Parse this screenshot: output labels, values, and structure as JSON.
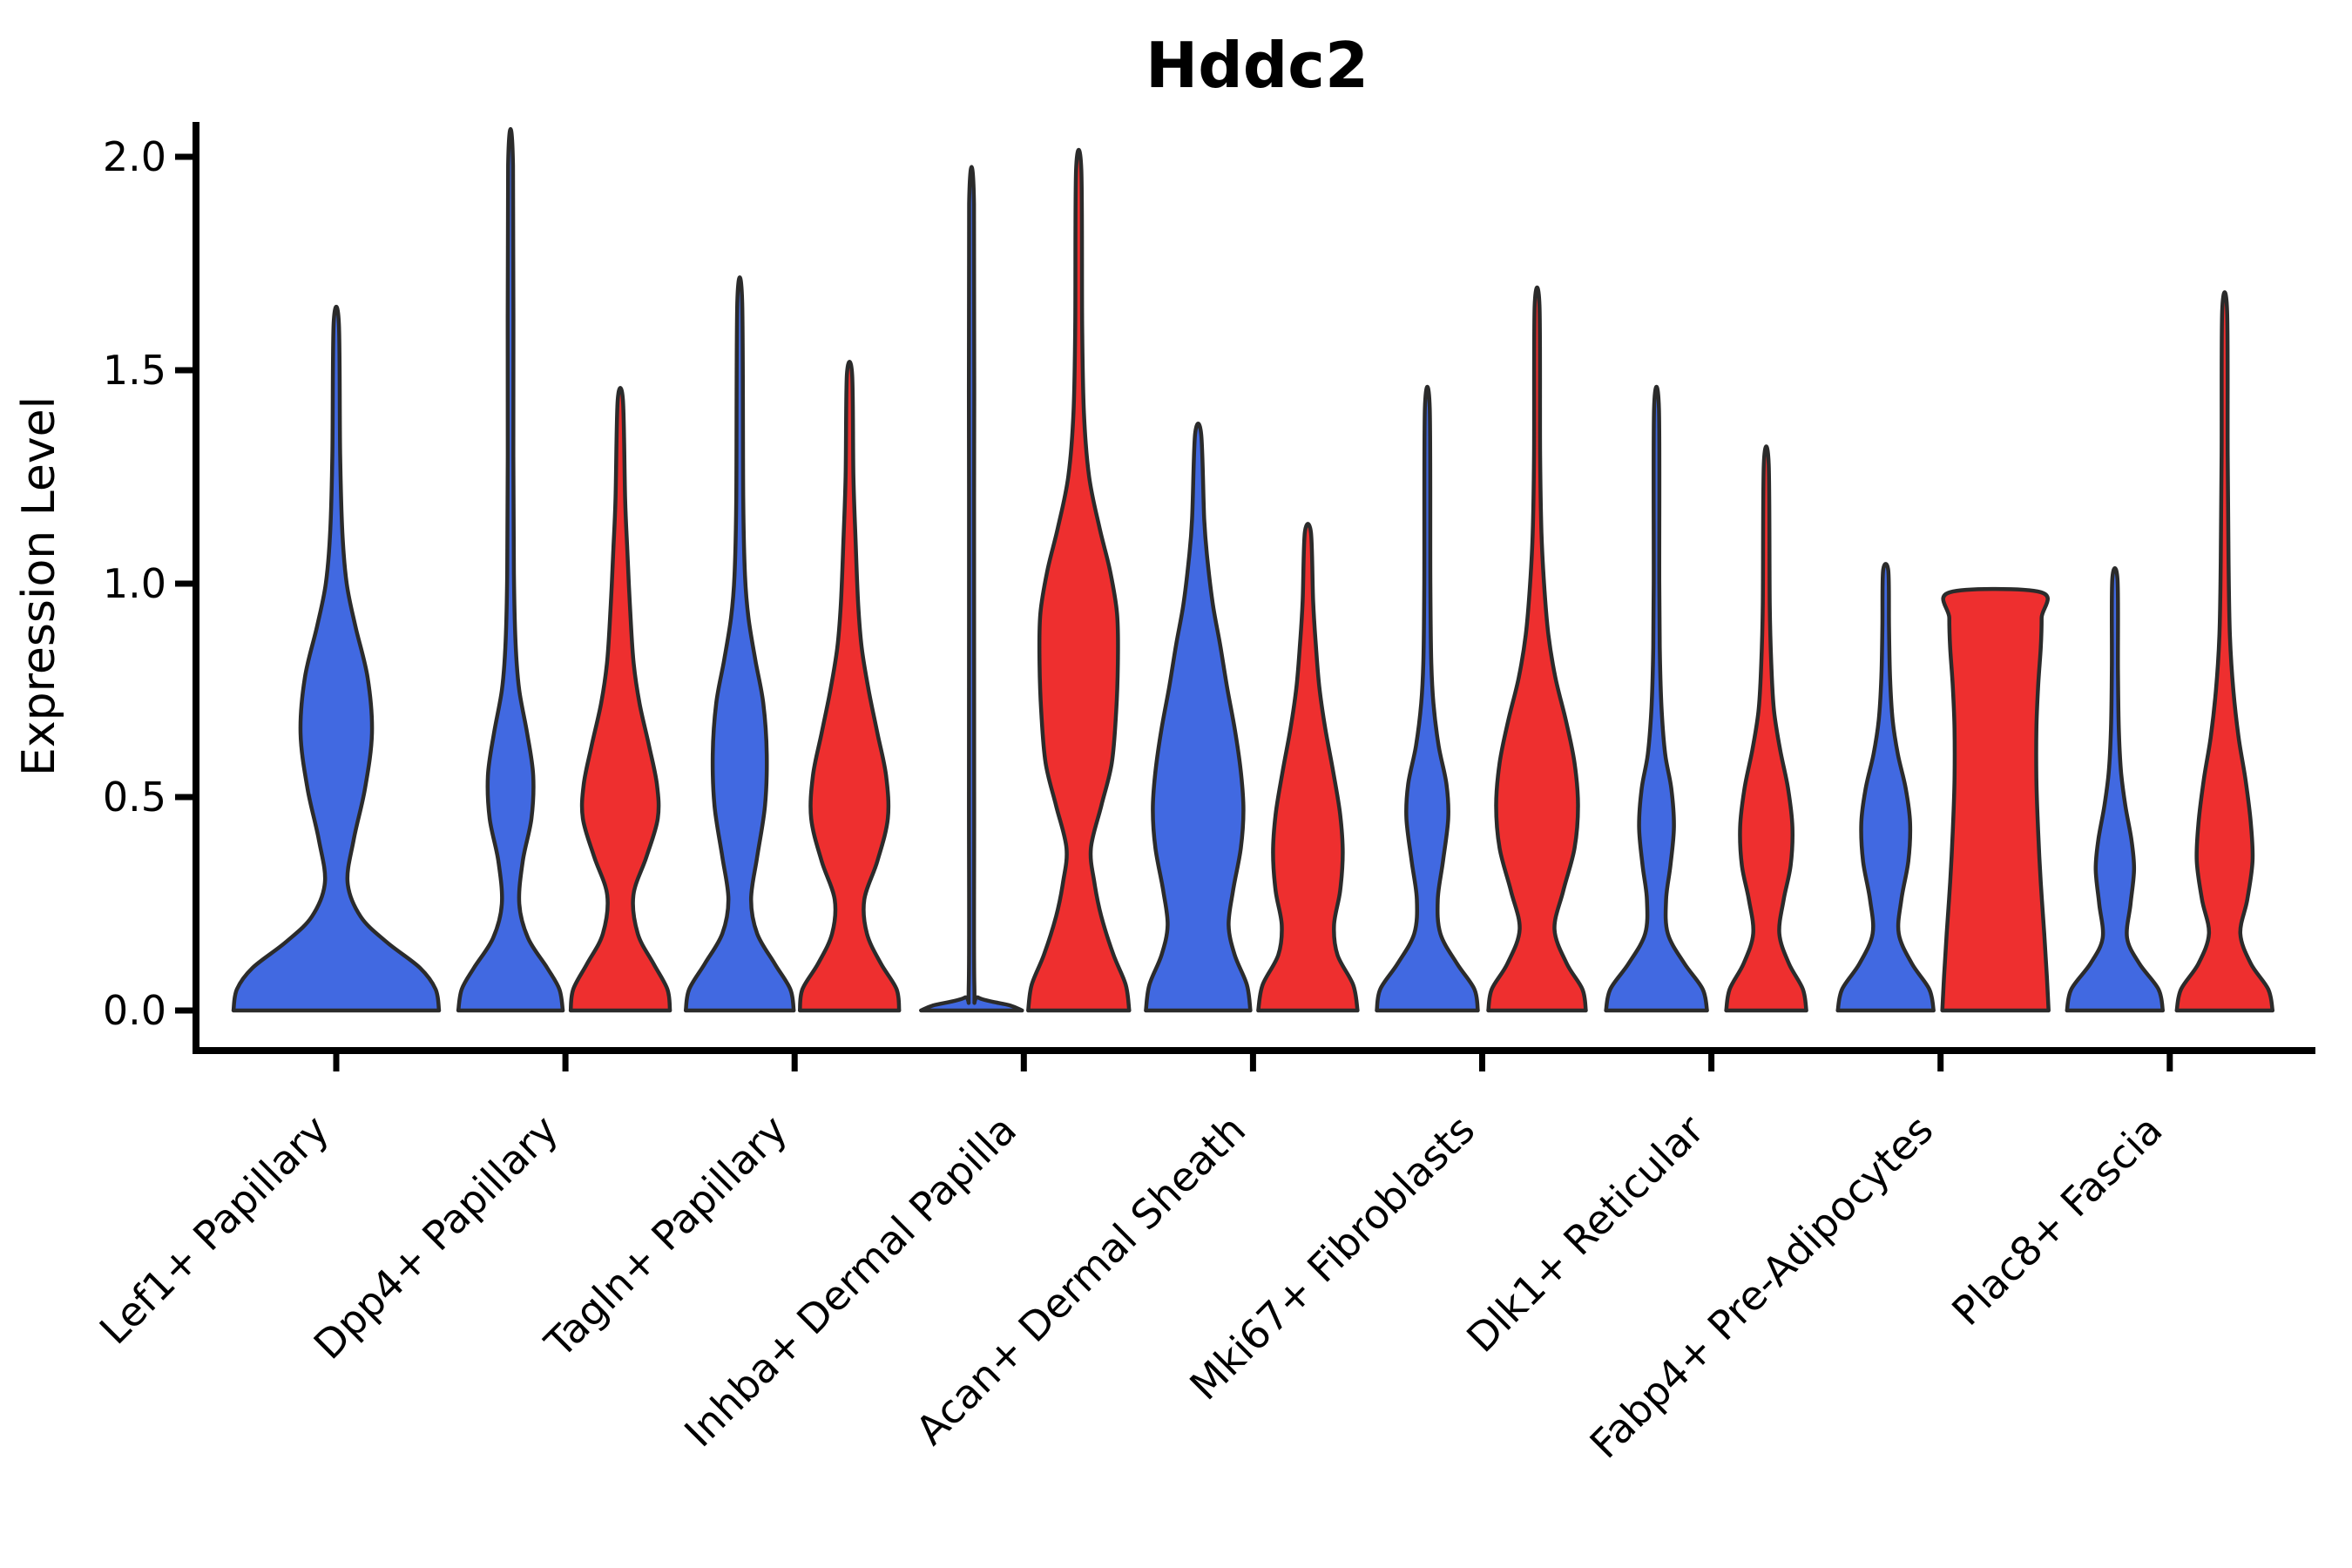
{
  "figure": {
    "title": "Hddc2",
    "ylabel": "Expression Level"
  },
  "colors": {
    "blue": "#4169E1",
    "red": "#EE2F2F",
    "outline": "#2B2B2B",
    "axis": "#000000",
    "text": "#000000",
    "background": "#FFFFFF"
  },
  "chart_data": {
    "type": "violin",
    "title": "Hddc2",
    "xlabel": "",
    "ylabel": "Expression Level",
    "ylim": [
      0,
      2.0
    ],
    "grid": false,
    "legend": "none",
    "yticks": [
      {
        "label": "0.0",
        "value": 0.0
      },
      {
        "label": "0.5",
        "value": 0.5
      },
      {
        "label": "1.0",
        "value": 1.0
      },
      {
        "label": "1.5",
        "value": 1.5
      },
      {
        "label": "2.0",
        "value": 2.0
      }
    ],
    "categories": [
      "Lef1+ Papillary",
      "Dpp4+ Papillary",
      "Tagln+ Papillary",
      "Inhba+ Dermal Papilla",
      "Acan+ Dermal Sheath",
      "Mki67+ Fibroblasts",
      "Dlk1+ Reticular",
      "Fabp4+ Pre-Adipocytes",
      "Plac8+ Fascia"
    ],
    "series": [
      {
        "name": "blue",
        "color": "#4169E1"
      },
      {
        "name": "red",
        "color": "#EE2F2F"
      }
    ],
    "violins": [
      {
        "category_index": 0,
        "category": "Lef1+ Papillary",
        "series": "blue",
        "offset": 0,
        "max_expression": 1.61,
        "profile": [
          [
            0,
            118
          ],
          [
            0.05,
            114
          ],
          [
            0.1,
            96
          ],
          [
            0.16,
            58
          ],
          [
            0.22,
            28
          ],
          [
            0.3,
            13
          ],
          [
            0.4,
            20
          ],
          [
            0.52,
            33
          ],
          [
            0.65,
            41
          ],
          [
            0.78,
            36
          ],
          [
            0.9,
            22
          ],
          [
            1.0,
            12
          ],
          [
            1.12,
            7
          ],
          [
            1.3,
            4.5
          ],
          [
            1.61,
            3
          ]
        ]
      },
      {
        "category_index": 1,
        "category": "Dpp4+ Papillary",
        "series": "blue",
        "offset": -63,
        "max_expression": 1.98,
        "profile": [
          [
            0,
            60
          ],
          [
            0.05,
            56
          ],
          [
            0.1,
            42
          ],
          [
            0.17,
            20
          ],
          [
            0.25,
            10
          ],
          [
            0.35,
            14
          ],
          [
            0.45,
            24
          ],
          [
            0.55,
            26
          ],
          [
            0.65,
            19
          ],
          [
            0.75,
            10
          ],
          [
            0.85,
            6
          ],
          [
            1.0,
            4
          ],
          [
            1.3,
            3.2
          ],
          [
            1.98,
            2.8
          ]
        ]
      },
      {
        "category_index": 1,
        "category": "Dpp4+ Papillary",
        "series": "red",
        "offset": 63,
        "max_expression": 1.43,
        "profile": [
          [
            0,
            57
          ],
          [
            0.05,
            54
          ],
          [
            0.11,
            38
          ],
          [
            0.18,
            20
          ],
          [
            0.27,
            15
          ],
          [
            0.36,
            30
          ],
          [
            0.45,
            43
          ],
          [
            0.53,
            42
          ],
          [
            0.62,
            33
          ],
          [
            0.72,
            22
          ],
          [
            0.82,
            15
          ],
          [
            0.95,
            11
          ],
          [
            1.08,
            8
          ],
          [
            1.2,
            5.5
          ],
          [
            1.43,
            3
          ]
        ]
      },
      {
        "category_index": 2,
        "category": "Tagln+ Papillary",
        "series": "blue",
        "offset": -63,
        "max_expression": 1.66,
        "profile": [
          [
            0,
            62
          ],
          [
            0.05,
            58
          ],
          [
            0.11,
            40
          ],
          [
            0.18,
            20
          ],
          [
            0.26,
            13
          ],
          [
            0.36,
            20
          ],
          [
            0.48,
            29
          ],
          [
            0.6,
            31
          ],
          [
            0.72,
            27
          ],
          [
            0.82,
            18
          ],
          [
            0.92,
            10
          ],
          [
            1.02,
            6
          ],
          [
            1.2,
            4
          ],
          [
            1.66,
            2.8
          ]
        ]
      },
      {
        "category_index": 2,
        "category": "Tagln+ Papillary",
        "series": "red",
        "offset": 63,
        "max_expression": 1.49,
        "profile": [
          [
            0,
            57
          ],
          [
            0.05,
            54
          ],
          [
            0.11,
            36
          ],
          [
            0.18,
            20
          ],
          [
            0.26,
            17
          ],
          [
            0.35,
            32
          ],
          [
            0.45,
            44
          ],
          [
            0.55,
            42
          ],
          [
            0.65,
            32
          ],
          [
            0.75,
            22
          ],
          [
            0.85,
            14
          ],
          [
            0.95,
            10
          ],
          [
            1.1,
            7
          ],
          [
            1.25,
            4.5
          ],
          [
            1.49,
            3
          ]
        ]
      },
      {
        "category_index": 3,
        "category": "Inhba+ Dermal Papilla",
        "series": "blue",
        "offset": -60,
        "max_expression": 1.89,
        "profile": [
          [
            0,
            58
          ],
          [
            0.012,
            44
          ],
          [
            0.03,
            8
          ],
          [
            0.06,
            3.2
          ],
          [
            0.5,
            3
          ],
          [
            1.2,
            2.9
          ],
          [
            1.89,
            2.8
          ]
        ]
      },
      {
        "category_index": 3,
        "category": "Inhba+ Dermal Papilla",
        "series": "red",
        "offset": 63,
        "max_expression": 1.97,
        "profile": [
          [
            0,
            58
          ],
          [
            0.06,
            54
          ],
          [
            0.13,
            40
          ],
          [
            0.22,
            26
          ],
          [
            0.3,
            18
          ],
          [
            0.38,
            14
          ],
          [
            0.48,
            26
          ],
          [
            0.58,
            38
          ],
          [
            0.7,
            43
          ],
          [
            0.82,
            45
          ],
          [
            0.93,
            44
          ],
          [
            1.03,
            36
          ],
          [
            1.13,
            24
          ],
          [
            1.25,
            12
          ],
          [
            1.4,
            6
          ],
          [
            1.6,
            4
          ],
          [
            1.97,
            3
          ]
        ]
      },
      {
        "category_index": 4,
        "category": "Acan+ Dermal Sheath",
        "series": "blue",
        "offset": -63,
        "max_expression": 1.35,
        "profile": [
          [
            0,
            60
          ],
          [
            0.06,
            56
          ],
          [
            0.13,
            42
          ],
          [
            0.2,
            35
          ],
          [
            0.28,
            40
          ],
          [
            0.38,
            49
          ],
          [
            0.47,
            52
          ],
          [
            0.56,
            49
          ],
          [
            0.66,
            42
          ],
          [
            0.76,
            33
          ],
          [
            0.86,
            25
          ],
          [
            0.95,
            17
          ],
          [
            1.05,
            11
          ],
          [
            1.15,
            7
          ],
          [
            1.35,
            3.5
          ]
        ]
      },
      {
        "category_index": 4,
        "category": "Acan+ Dermal Sheath",
        "series": "red",
        "offset": 63,
        "max_expression": 1.12,
        "profile": [
          [
            0,
            57
          ],
          [
            0.06,
            52
          ],
          [
            0.13,
            34
          ],
          [
            0.2,
            30
          ],
          [
            0.28,
            37
          ],
          [
            0.37,
            40
          ],
          [
            0.46,
            37
          ],
          [
            0.56,
            29
          ],
          [
            0.66,
            20
          ],
          [
            0.76,
            13
          ],
          [
            0.86,
            9
          ],
          [
            0.96,
            6
          ],
          [
            1.12,
            3.5
          ]
        ]
      },
      {
        "category_index": 5,
        "category": "Mki67+ Fibroblasts",
        "series": "blue",
        "offset": -63,
        "max_expression": 1.41,
        "profile": [
          [
            0,
            58
          ],
          [
            0.05,
            54
          ],
          [
            0.11,
            34
          ],
          [
            0.18,
            15
          ],
          [
            0.26,
            12
          ],
          [
            0.35,
            18
          ],
          [
            0.45,
            24
          ],
          [
            0.53,
            22
          ],
          [
            0.62,
            13
          ],
          [
            0.72,
            7
          ],
          [
            0.82,
            4.5
          ],
          [
            1.0,
            3.5
          ],
          [
            1.41,
            2.8
          ]
        ]
      },
      {
        "category_index": 5,
        "category": "Mki67+ Fibroblasts",
        "series": "red",
        "offset": 63,
        "max_expression": 1.65,
        "profile": [
          [
            0,
            56
          ],
          [
            0.05,
            52
          ],
          [
            0.11,
            34
          ],
          [
            0.19,
            20
          ],
          [
            0.28,
            30
          ],
          [
            0.38,
            43
          ],
          [
            0.48,
            47
          ],
          [
            0.58,
            43
          ],
          [
            0.68,
            33
          ],
          [
            0.78,
            21
          ],
          [
            0.88,
            13
          ],
          [
            1.0,
            8
          ],
          [
            1.12,
            5
          ],
          [
            1.3,
            3.5
          ],
          [
            1.65,
            2.8
          ]
        ]
      },
      {
        "category_index": 6,
        "category": "Dlk1+ Reticular",
        "series": "blue",
        "offset": -63,
        "max_expression": 1.41,
        "profile": [
          [
            0,
            58
          ],
          [
            0.05,
            53
          ],
          [
            0.11,
            32
          ],
          [
            0.18,
            13
          ],
          [
            0.26,
            11
          ],
          [
            0.34,
            16
          ],
          [
            0.43,
            20
          ],
          [
            0.52,
            17
          ],
          [
            0.6,
            10
          ],
          [
            0.7,
            6
          ],
          [
            0.82,
            4
          ],
          [
            1.0,
            3.2
          ],
          [
            1.41,
            2.8
          ]
        ]
      },
      {
        "category_index": 6,
        "category": "Dlk1+ Reticular",
        "series": "red",
        "offset": 63,
        "max_expression": 1.28,
        "profile": [
          [
            0,
            46
          ],
          [
            0.05,
            42
          ],
          [
            0.11,
            26
          ],
          [
            0.18,
            15
          ],
          [
            0.26,
            20
          ],
          [
            0.34,
            28
          ],
          [
            0.43,
            30
          ],
          [
            0.52,
            25
          ],
          [
            0.61,
            16
          ],
          [
            0.7,
            9
          ],
          [
            0.8,
            6
          ],
          [
            0.95,
            4
          ],
          [
            1.28,
            2.8
          ]
        ]
      },
      {
        "category_index": 7,
        "category": "Fabp4+ Pre-Adipocytes",
        "series": "blue",
        "offset": -63,
        "max_expression": 1.03,
        "profile": [
          [
            0,
            55
          ],
          [
            0.05,
            50
          ],
          [
            0.11,
            30
          ],
          [
            0.18,
            15
          ],
          [
            0.26,
            18
          ],
          [
            0.35,
            26
          ],
          [
            0.44,
            28
          ],
          [
            0.52,
            23
          ],
          [
            0.6,
            14
          ],
          [
            0.68,
            8
          ],
          [
            0.78,
            5
          ],
          [
            0.9,
            3.8
          ],
          [
            1.03,
            3
          ]
        ]
      },
      {
        "category_index": 7,
        "category": "Fabp4+ Pre-Adipocytes",
        "series": "red",
        "offset": 63,
        "max_expression": 0.98,
        "profile": [
          [
            0,
            61
          ],
          [
            0.08,
            59
          ],
          [
            0.18,
            56
          ],
          [
            0.3,
            52
          ],
          [
            0.42,
            49
          ],
          [
            0.54,
            47
          ],
          [
            0.66,
            47
          ],
          [
            0.76,
            49
          ],
          [
            0.85,
            52
          ],
          [
            0.92,
            53
          ],
          [
            0.98,
            52
          ]
        ]
      },
      {
        "category_index": 8,
        "category": "Plac8+ Fascia",
        "series": "blue",
        "offset": -63,
        "max_expression": 1.01,
        "profile": [
          [
            0,
            55
          ],
          [
            0.05,
            50
          ],
          [
            0.11,
            28
          ],
          [
            0.17,
            14
          ],
          [
            0.25,
            18
          ],
          [
            0.33,
            22
          ],
          [
            0.4,
            19
          ],
          [
            0.48,
            12
          ],
          [
            0.56,
            7
          ],
          [
            0.66,
            4.5
          ],
          [
            0.8,
            3.5
          ],
          [
            1.01,
            3
          ]
        ]
      },
      {
        "category_index": 8,
        "category": "Plac8+ Fascia",
        "series": "red",
        "offset": 63,
        "max_expression": 1.64,
        "profile": [
          [
            0,
            55
          ],
          [
            0.05,
            50
          ],
          [
            0.11,
            30
          ],
          [
            0.18,
            18
          ],
          [
            0.26,
            26
          ],
          [
            0.35,
            32
          ],
          [
            0.44,
            30
          ],
          [
            0.54,
            24
          ],
          [
            0.64,
            16
          ],
          [
            0.75,
            10
          ],
          [
            0.88,
            6
          ],
          [
            1.05,
            4.5
          ],
          [
            1.3,
            3.5
          ],
          [
            1.64,
            2.8
          ]
        ]
      }
    ]
  }
}
